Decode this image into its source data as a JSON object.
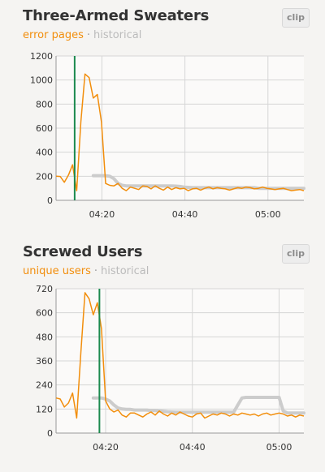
{
  "colors": {
    "primary_line": "#f28e0c",
    "historical_line": "#cccccc",
    "marker_line": "#1c8a4f",
    "grid": "#d6d6d6",
    "plot_bg": "#fbfaf9"
  },
  "panels": [
    {
      "title": "Three-Armed Sweaters",
      "subtitle_primary": "error pages",
      "subtitle_secondary": "historical",
      "clip_label": "clip"
    },
    {
      "title": "Screwed Users",
      "subtitle_primary": "unique users",
      "subtitle_secondary": "historical",
      "clip_label": "clip"
    }
  ],
  "chart_data": [
    {
      "type": "line",
      "x_ticks": [
        "04:20",
        "04:40",
        "05:00"
      ],
      "x_range_minutes": [
        0,
        60
      ],
      "ylim": [
        0,
        1200
      ],
      "y_ticks": [
        0,
        200,
        400,
        600,
        800,
        1000,
        1200
      ],
      "grid": true,
      "marker_x": 4.5,
      "series": [
        {
          "name": "error pages",
          "x": [
            0,
            1,
            2,
            3,
            4,
            5,
            6,
            7,
            8,
            9,
            10,
            11,
            12,
            13,
            14,
            15,
            16,
            17,
            18,
            19,
            20,
            21,
            22,
            23,
            24,
            25,
            26,
            27,
            28,
            29,
            30,
            31,
            32,
            33,
            34,
            35,
            36,
            37,
            38,
            39,
            40,
            41,
            42,
            43,
            44,
            45,
            46,
            47,
            48,
            49,
            50,
            51,
            52,
            53,
            54,
            55,
            56,
            57,
            58,
            59,
            60
          ],
          "y": [
            200,
            198,
            150,
            210,
            295,
            80,
            650,
            1050,
            1020,
            850,
            880,
            650,
            140,
            125,
            120,
            140,
            100,
            80,
            110,
            100,
            90,
            120,
            115,
            95,
            120,
            100,
            85,
            110,
            90,
            105,
            95,
            100,
            80,
            95,
            100,
            85,
            100,
            110,
            95,
            105,
            100,
            95,
            85,
            95,
            105,
            100,
            110,
            105,
            95,
            100,
            110,
            100,
            95,
            90,
            95,
            100,
            90,
            80,
            85,
            90,
            80
          ]
        },
        {
          "name": "historical",
          "x": [
            9,
            10,
            11,
            12,
            13,
            14,
            15,
            16,
            17,
            18,
            19,
            20,
            21,
            22,
            23,
            24,
            25,
            26,
            27,
            28,
            29,
            30,
            31,
            32,
            33,
            34,
            35,
            36,
            37,
            38,
            39,
            40,
            41,
            42,
            43,
            44,
            45,
            46,
            47,
            48,
            49,
            50,
            51,
            52,
            53,
            54,
            55,
            56,
            57,
            58,
            59,
            60
          ],
          "y": [
            205,
            205,
            205,
            205,
            200,
            180,
            140,
            125,
            120,
            120,
            120,
            120,
            120,
            120,
            120,
            120,
            120,
            120,
            120,
            120,
            118,
            115,
            110,
            108,
            105,
            105,
            105,
            105,
            105,
            105,
            105,
            105,
            105,
            105,
            105,
            105,
            105,
            105,
            105,
            105,
            100,
            100,
            100,
            100,
            100,
            100,
            100,
            100,
            100,
            100,
            100,
            100
          ]
        }
      ]
    },
    {
      "type": "line",
      "x_ticks": [
        "04:20",
        "04:40",
        "05:00"
      ],
      "x_range_minutes": [
        0,
        60
      ],
      "ylim": [
        0,
        720
      ],
      "y_ticks": [
        0,
        120,
        240,
        360,
        480,
        600,
        720
      ],
      "grid": true,
      "marker_x": 10.5,
      "series": [
        {
          "name": "unique users",
          "x": [
            0,
            1,
            2,
            3,
            4,
            5,
            6,
            7,
            8,
            9,
            10,
            11,
            12,
            13,
            14,
            15,
            16,
            17,
            18,
            19,
            20,
            21,
            22,
            23,
            24,
            25,
            26,
            27,
            28,
            29,
            30,
            31,
            32,
            33,
            34,
            35,
            36,
            37,
            38,
            39,
            40,
            41,
            42,
            43,
            44,
            45,
            46,
            47,
            48,
            49,
            50,
            51,
            52,
            53,
            54,
            55,
            56,
            57,
            58,
            59,
            60
          ],
          "y": [
            175,
            170,
            130,
            150,
            200,
            75,
            400,
            700,
            670,
            590,
            650,
            520,
            160,
            120,
            105,
            115,
            90,
            80,
            100,
            100,
            90,
            80,
            95,
            105,
            90,
            110,
            95,
            85,
            100,
            90,
            105,
            95,
            85,
            80,
            95,
            100,
            75,
            85,
            95,
            90,
            100,
            95,
            85,
            95,
            90,
            100,
            95,
            90,
            95,
            85,
            95,
            100,
            90,
            95,
            100,
            95,
            85,
            90,
            80,
            90,
            85
          ]
        },
        {
          "name": "historical",
          "x": [
            9,
            10,
            11,
            12,
            13,
            14,
            15,
            16,
            17,
            18,
            19,
            20,
            21,
            22,
            23,
            24,
            25,
            26,
            27,
            28,
            29,
            30,
            31,
            32,
            33,
            34,
            35,
            36,
            37,
            38,
            39,
            40,
            41,
            42,
            43,
            44,
            45,
            46,
            47,
            48,
            49,
            50,
            51,
            52,
            53,
            54,
            55,
            56,
            57,
            58,
            59,
            60
          ],
          "y": [
            175,
            175,
            175,
            170,
            160,
            140,
            125,
            120,
            118,
            118,
            115,
            115,
            115,
            115,
            112,
            112,
            110,
            108,
            106,
            105,
            104,
            104,
            104,
            104,
            104,
            104,
            104,
            104,
            104,
            104,
            104,
            104,
            104,
            104,
            104,
            140,
            175,
            178,
            178,
            178,
            178,
            178,
            178,
            178,
            178,
            178,
            110,
            100,
            100,
            100,
            100,
            100
          ]
        }
      ]
    }
  ]
}
